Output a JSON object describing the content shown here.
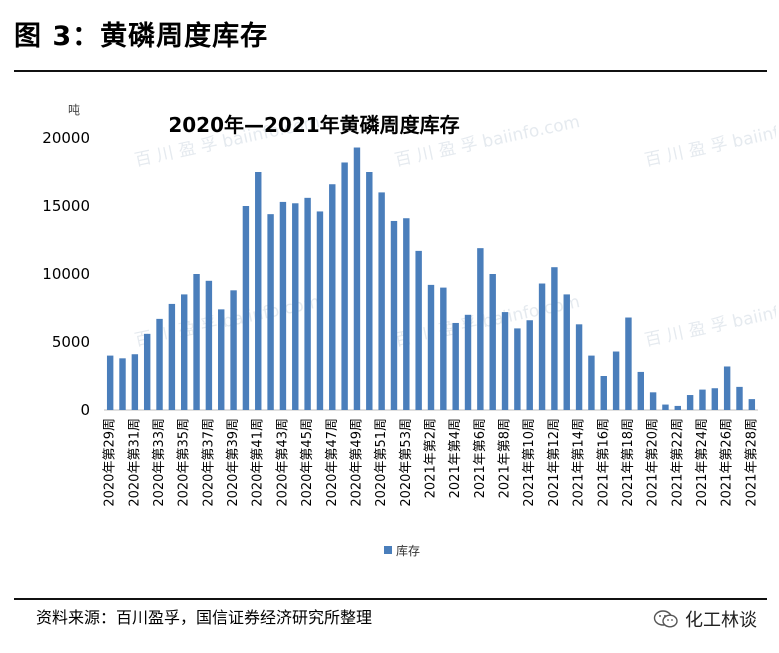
{
  "figure": {
    "title": "图 3：黄磷周度库存",
    "source": "资料来源：百川盈孚，国信证券经济研究所整理",
    "brand": "化工林谈",
    "brand_icon": "wechat-icon",
    "watermark": "百 川 盈 孚 baiinfo.com"
  },
  "chart_data": {
    "type": "bar",
    "title": "2020年—2021年黄磷周度库存",
    "unit_label": "吨",
    "xlabel": "",
    "ylabel": "",
    "ylim": [
      0,
      20000
    ],
    "yticks": [
      0,
      5000,
      10000,
      15000,
      20000
    ],
    "grid": false,
    "legend_position": "bottom",
    "bar_color": "#4a7ebb",
    "categories": [
      "2020年第29周",
      "2020年第30周",
      "2020年第31周",
      "2020年第32周",
      "2020年第33周",
      "2020年第34周",
      "2020年第35周",
      "2020年第36周",
      "2020年第37周",
      "2020年第38周",
      "2020年第39周",
      "2020年第40周",
      "2020年第41周",
      "2020年第42周",
      "2020年第43周",
      "2020年第44周",
      "2020年第45周",
      "2020年第46周",
      "2020年第47周",
      "2020年第48周",
      "2020年第49周",
      "2020年第50周",
      "2020年第51周",
      "2020年第52周",
      "2020年第53周",
      "2021年第1周",
      "2021年第2周",
      "2021年第3周",
      "2021年第4周",
      "2021年第5周",
      "2021年第6周",
      "2021年第7周",
      "2021年第8周",
      "2021年第9周",
      "2021年第10周",
      "2021年第11周",
      "2021年第12周",
      "2021年第13周",
      "2021年第14周",
      "2021年第15周",
      "2021年第16周",
      "2021年第17周",
      "2021年第18周",
      "2021年第19周",
      "2021年第20周",
      "2021年第21周",
      "2021年第22周",
      "2021年第23周",
      "2021年第24周",
      "2021年第25周",
      "2021年第26周",
      "2021年第27周",
      "2021年第28周"
    ],
    "tick_labels_shown": [
      "2020年第29周",
      "2020年第31周",
      "2020年第33周",
      "2020年第35周",
      "2020年第37周",
      "2020年第39周",
      "2020年第41周",
      "2020年第43周",
      "2020年第45周",
      "2020年第47周",
      "2020年第49周",
      "2020年第51周",
      "2020年第53周",
      "2021年第2周",
      "2021年第4周",
      "2021年第6周",
      "2021年第8周",
      "2021年第10周",
      "2021年第12周",
      "2021年第14周",
      "2021年第16周",
      "2021年第18周",
      "2021年第20周",
      "2021年第22周",
      "2021年第24周",
      "2021年第26周",
      "2021年第28周"
    ],
    "series": [
      {
        "name": "库存",
        "values": [
          4000,
          3800,
          4100,
          5600,
          6700,
          7800,
          8500,
          10000,
          9500,
          7400,
          8800,
          15000,
          17500,
          14400,
          15300,
          15200,
          15600,
          14600,
          16600,
          18200,
          19300,
          17500,
          16000,
          13900,
          14100,
          11700,
          9200,
          9000,
          6400,
          7000,
          11900,
          10000,
          7200,
          6000,
          6600,
          9300,
          10500,
          8500,
          6300,
          4000,
          2500,
          4300,
          6800,
          2800,
          1300,
          400,
          300,
          1100,
          1500,
          1600,
          3200,
          1700,
          800
        ]
      }
    ]
  }
}
